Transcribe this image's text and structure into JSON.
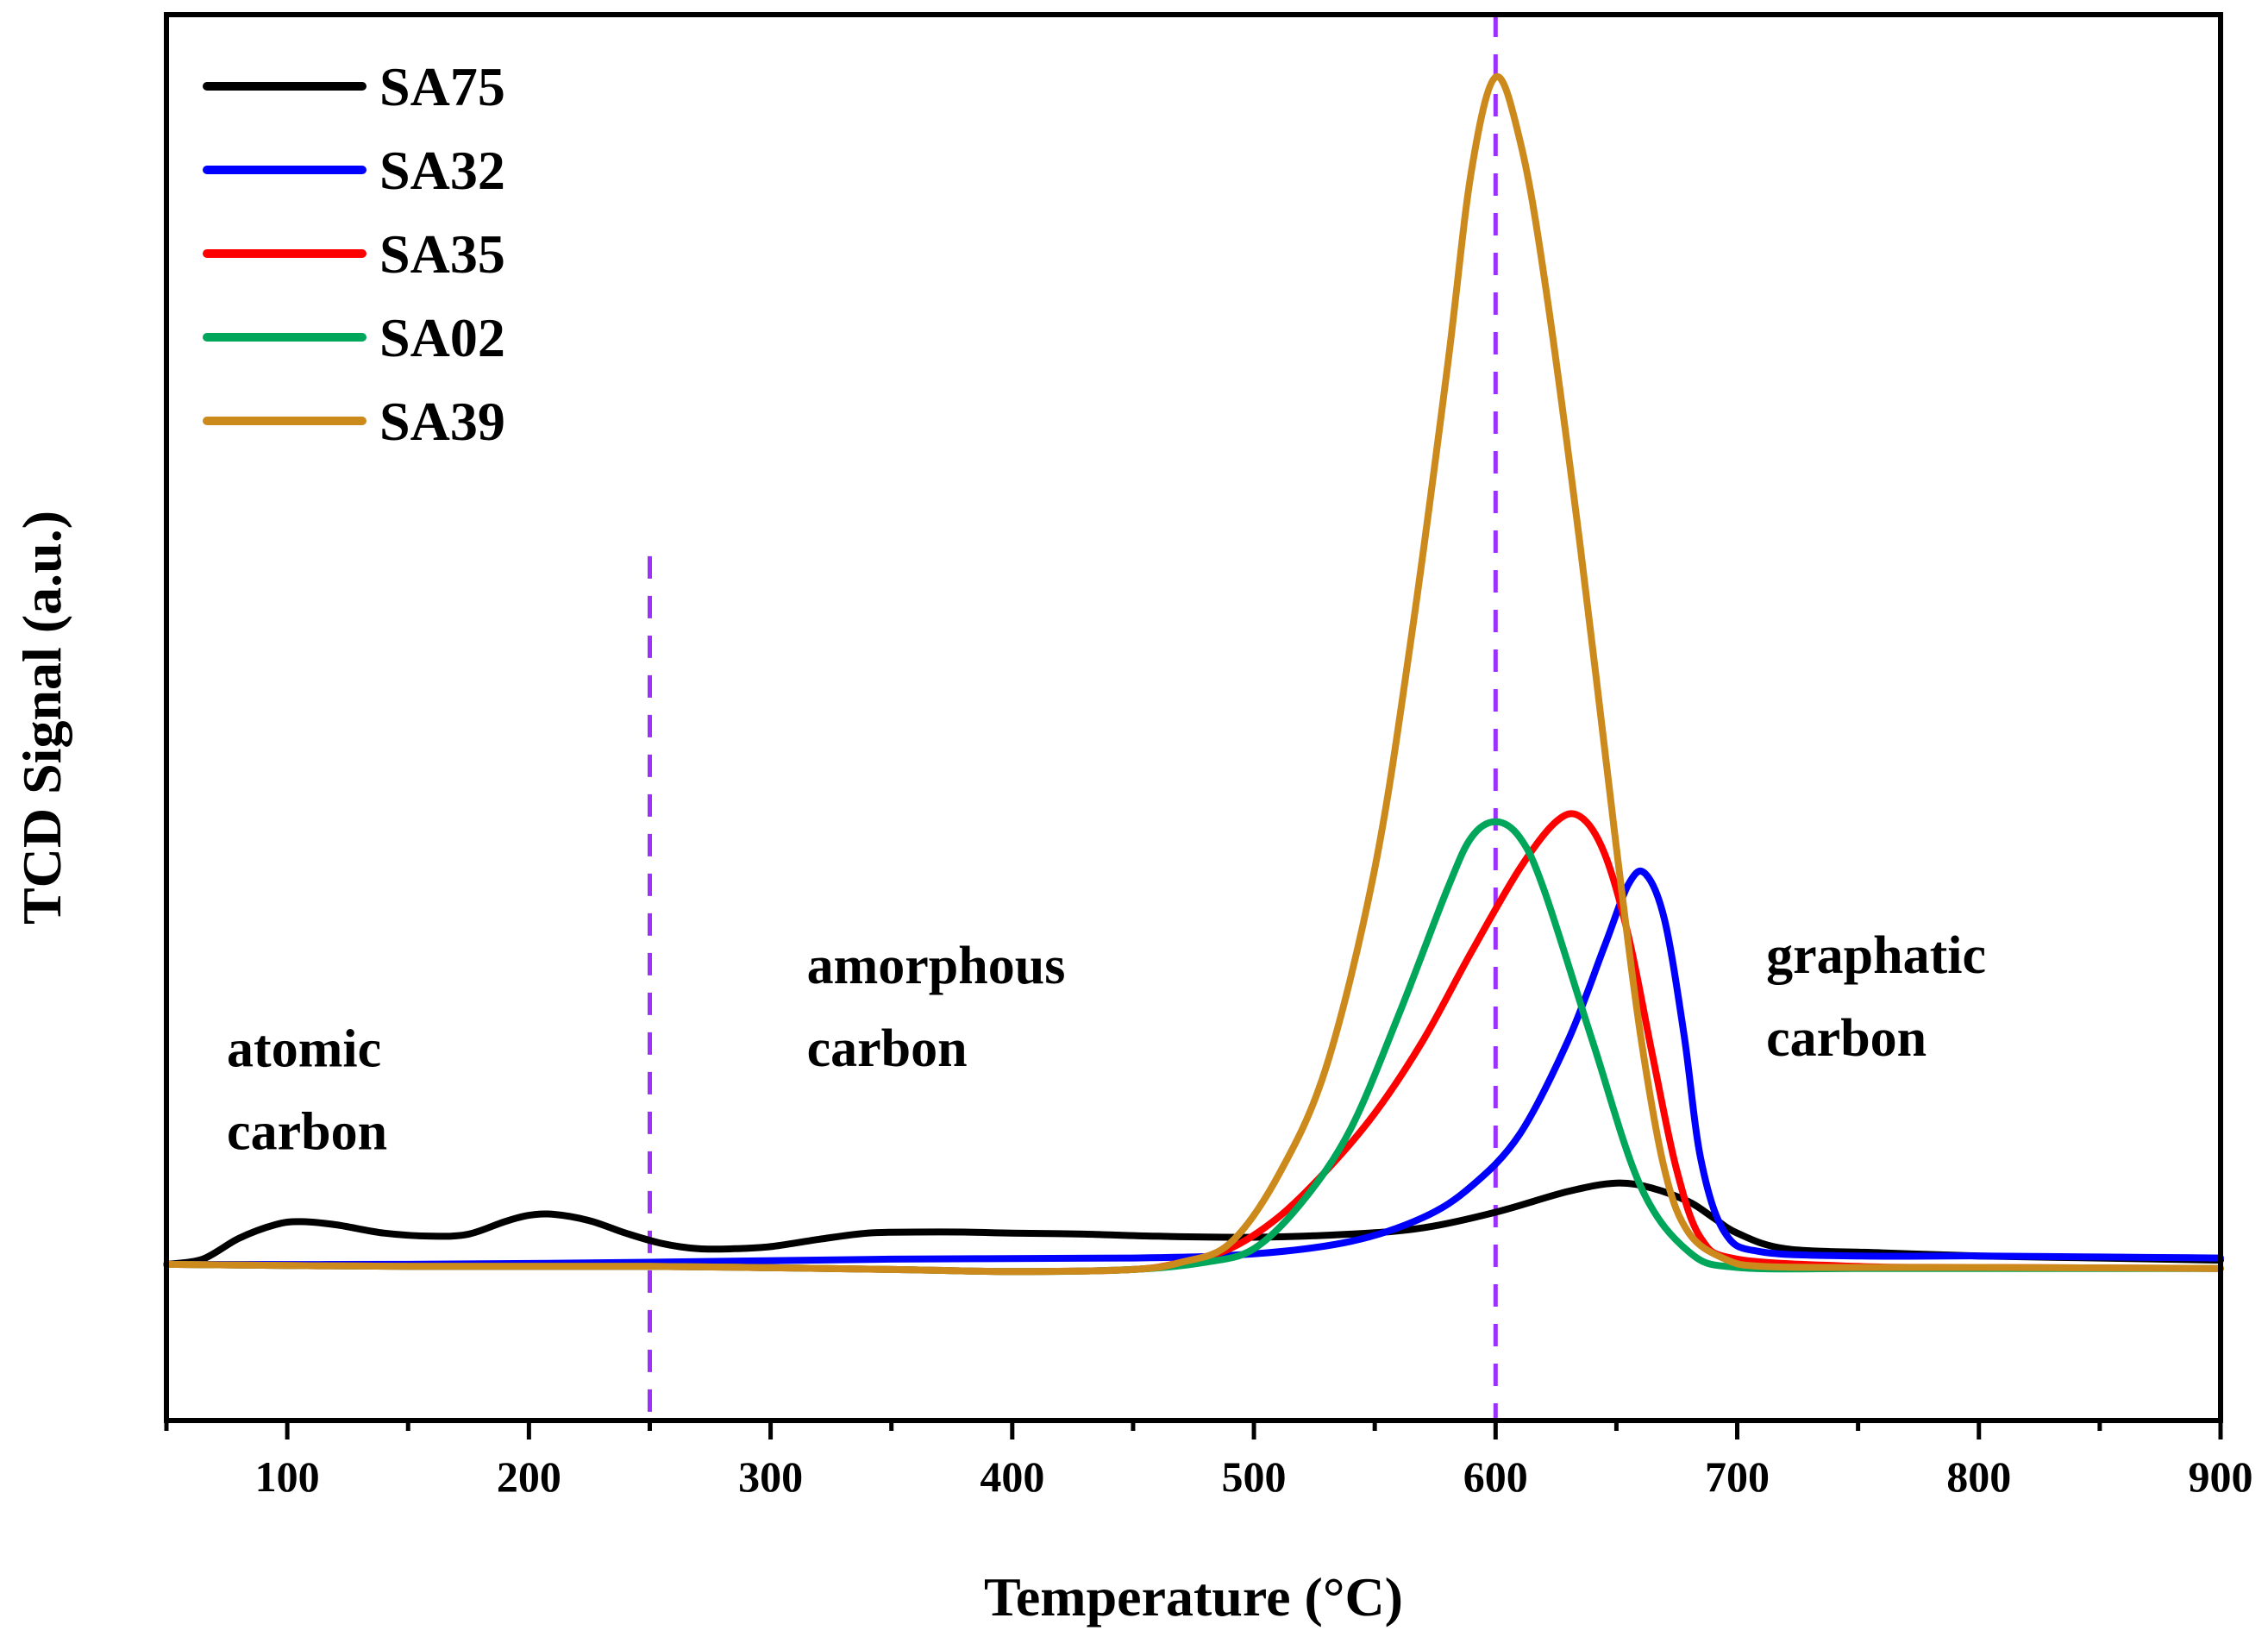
{
  "chart_data": {
    "type": "line",
    "title": "",
    "xlabel": "Temperature (°C)",
    "ylabel": "TCD Signal (a.u.)",
    "xlim": [
      50,
      900
    ],
    "ylim": [
      -0.15,
      1.2
    ],
    "x_ticks": [
      100,
      200,
      300,
      400,
      500,
      600,
      700,
      800,
      900
    ],
    "y_ticks_shown": false,
    "grid": false,
    "legend_position": "top-left",
    "reference_lines": [
      {
        "name": "boundary-250",
        "x": 250,
        "style": "dashed",
        "color": "#9b30ff",
        "y_range": [
          -0.15,
          0.68
        ]
      },
      {
        "name": "boundary-600",
        "x": 600,
        "style": "dashed",
        "color": "#9b30ff",
        "y_range": [
          -0.15,
          1.2
        ]
      }
    ],
    "annotations": [
      {
        "name": "atomic-carbon",
        "lines": [
          "atomic",
          "carbon"
        ],
        "x": 75,
        "y": 0.19
      },
      {
        "name": "amorphous-carbon",
        "lines": [
          "amorphous",
          "carbon"
        ],
        "x": 315,
        "y": 0.27
      },
      {
        "name": "graphatic-carbon",
        "lines": [
          "graphatic",
          "carbon"
        ],
        "x": 712,
        "y": 0.28
      }
    ],
    "series": [
      {
        "name": "SA75",
        "color": "#000000",
        "x": [
          50,
          65,
          80,
          95,
          105,
          120,
          140,
          160,
          175,
          190,
          200,
          210,
          225,
          240,
          255,
          270,
          285,
          300,
          320,
          340,
          360,
          380,
          400,
          430,
          460,
          500,
          540,
          570,
          600,
          630,
          650,
          665,
          680,
          690,
          700,
          720,
          760,
          800,
          850,
          900
        ],
        "y": [
          0.0,
          0.005,
          0.025,
          0.038,
          0.041,
          0.038,
          0.03,
          0.027,
          0.029,
          0.041,
          0.047,
          0.048,
          0.042,
          0.03,
          0.02,
          0.015,
          0.015,
          0.017,
          0.024,
          0.03,
          0.031,
          0.031,
          0.03,
          0.029,
          0.027,
          0.026,
          0.029,
          0.035,
          0.05,
          0.07,
          0.078,
          0.073,
          0.06,
          0.045,
          0.03,
          0.015,
          0.011,
          0.008,
          0.006,
          0.004
        ]
      },
      {
        "name": "SA32",
        "color": "#0000ff",
        "x": [
          50,
          150,
          250,
          350,
          450,
          500,
          540,
          570,
          590,
          610,
          630,
          645,
          655,
          662,
          670,
          678,
          685,
          695,
          710,
          750,
          800,
          850,
          900
        ],
        "y": [
          0.0,
          0.0,
          0.002,
          0.005,
          0.006,
          0.01,
          0.022,
          0.045,
          0.075,
          0.125,
          0.215,
          0.305,
          0.365,
          0.375,
          0.33,
          0.22,
          0.1,
          0.03,
          0.012,
          0.008,
          0.008,
          0.007,
          0.006
        ]
      },
      {
        "name": "SA35",
        "color": "#ff0000",
        "x": [
          50,
          150,
          250,
          350,
          400,
          450,
          470,
          490,
          510,
          530,
          550,
          570,
          590,
          610,
          625,
          635,
          645,
          655,
          665,
          675,
          685,
          700,
          750,
          800,
          900
        ],
        "y": [
          0.0,
          -0.002,
          -0.002,
          -0.005,
          -0.007,
          -0.005,
          0.002,
          0.015,
          0.045,
          0.09,
          0.145,
          0.215,
          0.3,
          0.38,
          0.425,
          0.43,
          0.395,
          0.315,
          0.2,
          0.09,
          0.025,
          0.005,
          -0.002,
          -0.003,
          -0.004
        ]
      },
      {
        "name": "SA02",
        "color": "#00a65a",
        "x": [
          50,
          150,
          250,
          350,
          400,
          450,
          480,
          500,
          520,
          540,
          560,
          580,
          590,
          600,
          610,
          620,
          640,
          660,
          680,
          700,
          750,
          800,
          900
        ],
        "y": [
          0.0,
          -0.002,
          -0.002,
          -0.005,
          -0.007,
          -0.005,
          0.002,
          0.015,
          0.06,
          0.13,
          0.24,
          0.36,
          0.41,
          0.425,
          0.41,
          0.36,
          0.215,
          0.075,
          0.012,
          -0.003,
          -0.004,
          -0.004,
          -0.004
        ]
      },
      {
        "name": "SA39",
        "color": "#cd8a1c",
        "x": [
          50,
          150,
          250,
          350,
          400,
          450,
          470,
          490,
          510,
          530,
          550,
          565,
          580,
          590,
          600,
          610,
          620,
          635,
          650,
          660,
          670,
          680,
          695,
          710,
          750,
          800,
          900
        ],
        "y": [
          0.0,
          -0.002,
          -0.002,
          -0.005,
          -0.007,
          -0.005,
          0.002,
          0.02,
          0.085,
          0.19,
          0.38,
          0.6,
          0.86,
          1.05,
          1.14,
          1.08,
          0.95,
          0.69,
          0.4,
          0.22,
          0.09,
          0.03,
          0.005,
          -0.002,
          -0.003,
          -0.003,
          -0.004
        ]
      }
    ]
  }
}
